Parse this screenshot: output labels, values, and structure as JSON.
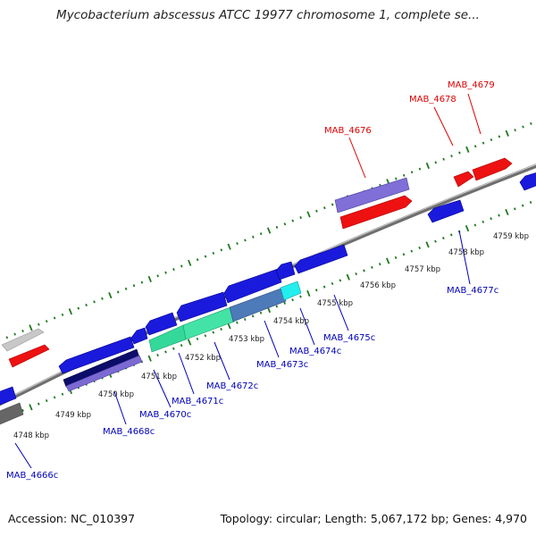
{
  "title": "Mycobacterium abscessus ATCC 19977 chromosome 1, complete se...",
  "footer": {
    "accession": "Accession: NC_010397",
    "summary": "Topology: circular; Length: 5,067,172 bp; Genes: 4,970"
  },
  "colors": {
    "backbone": "#8a8a8a",
    "forward_label": "#dd0000",
    "reverse_label": "#0000bb",
    "tick_mark": "#1e7a1e"
  },
  "scale_ticks": [
    {
      "label": "4748 kbp"
    },
    {
      "label": "4749 kbp"
    },
    {
      "label": "4750 kbp"
    },
    {
      "label": "4751 kbp"
    },
    {
      "label": "4752 kbp"
    },
    {
      "label": "4753 kbp"
    },
    {
      "label": "4754 kbp"
    },
    {
      "label": "4755 kbp"
    },
    {
      "label": "4756 kbp"
    },
    {
      "label": "4757 kbp"
    },
    {
      "label": "4758 kbp"
    },
    {
      "label": "4759 kbp"
    }
  ],
  "gene_labels": [
    {
      "text": "MAB_4679",
      "strand": "forward"
    },
    {
      "text": "MAB_4678",
      "strand": "forward"
    },
    {
      "text": "MAB_4676",
      "strand": "forward"
    },
    {
      "text": "MAB_4677c",
      "strand": "reverse"
    },
    {
      "text": "MAB_4675c",
      "strand": "reverse"
    },
    {
      "text": "MAB_4674c",
      "strand": "reverse"
    },
    {
      "text": "MAB_4673c",
      "strand": "reverse"
    },
    {
      "text": "MAB_4672c",
      "strand": "reverse"
    },
    {
      "text": "MAB_4671c",
      "strand": "reverse"
    },
    {
      "text": "MAB_4670c",
      "strand": "reverse"
    },
    {
      "text": "MAB_4668c",
      "strand": "reverse"
    },
    {
      "text": "MAB_4666c",
      "strand": "reverse"
    }
  ]
}
